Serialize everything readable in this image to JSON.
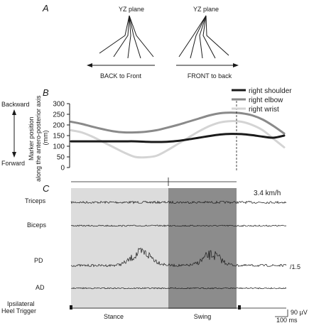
{
  "panel_a": {
    "label": "A",
    "left_plane": "YZ plane",
    "right_plane": "YZ plane",
    "left_caption": "BACK to Front",
    "right_caption": "FRONT to back"
  },
  "panel_b": {
    "label": "B",
    "side_top": "Backward",
    "side_bottom": "Forward"
  },
  "panel_c": {
    "label": "C",
    "speed": "3.4 km/h",
    "muscles": [
      "Triceps",
      "Biceps",
      "PD",
      "AD"
    ],
    "pd_scale": "/1.5",
    "trigger_label_1": "Ipsilateral",
    "trigger_label_2": "Heel Trigger",
    "stance": "Stance",
    "swing": "Swing",
    "scale_amp": "90 µV",
    "scale_time": "100 ms",
    "colors": {
      "stance": "#dcdcdc",
      "swing": "#8c8c8c"
    }
  },
  "chart_data": {
    "type": "line",
    "ylabel": "Marker position along the antero-posterior axis (mm)",
    "ylim": [
      0,
      300
    ],
    "yticks": [
      0,
      50,
      100,
      150,
      200,
      250,
      300
    ],
    "legend_position": "top-right",
    "x": [
      0,
      5,
      10,
      15,
      20,
      25,
      30,
      35,
      40,
      45,
      50,
      55,
      60,
      65,
      70,
      75,
      80,
      85,
      90,
      95,
      100
    ],
    "series": [
      {
        "name": "right shoulder",
        "color": "#1a1a1a",
        "values": [
          123,
          123,
          123,
          123,
          123,
          123,
          123,
          121,
          120,
          121,
          125,
          132,
          140,
          148,
          155,
          158,
          157,
          152,
          145,
          140,
          150
        ]
      },
      {
        "name": "right elbow",
        "color": "#8a8a8a",
        "values": [
          215,
          205,
          192,
          180,
          170,
          165,
          165,
          168,
          175,
          187,
          200,
          215,
          230,
          245,
          255,
          258,
          255,
          245,
          225,
          195,
          160
        ]
      },
      {
        "name": "right wrist",
        "color": "#d4d4d4",
        "values": [
          175,
          165,
          145,
          120,
          95,
          70,
          50,
          48,
          55,
          80,
          110,
          140,
          170,
          195,
          212,
          218,
          215,
          200,
          175,
          135,
          95
        ]
      }
    ]
  }
}
